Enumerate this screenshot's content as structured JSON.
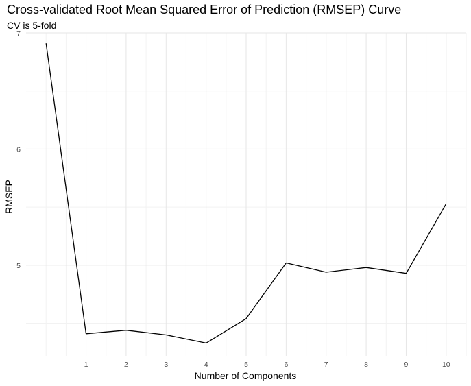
{
  "chart_data": {
    "type": "line",
    "title": "Cross-validated Root Mean Squared Error of Prediction (RMSEP) Curve",
    "subtitle": "CV is 5-fold",
    "xlabel": "Number of Components",
    "ylabel": "RMSEP",
    "x_ticks": [
      1,
      2,
      3,
      4,
      5,
      6,
      7,
      8,
      9,
      10
    ],
    "y_ticks": [
      5,
      6,
      7
    ],
    "xlim": [
      -0.5,
      10.5
    ],
    "ylim": [
      4.22,
      7.0
    ],
    "grid": true,
    "legend": "none",
    "line_color": "#000000",
    "series": [
      {
        "x": [
          0,
          1,
          2,
          3,
          4,
          5,
          6,
          7,
          8,
          9,
          10
        ],
        "values": [
          6.91,
          4.41,
          4.44,
          4.4,
          4.33,
          4.54,
          5.02,
          4.94,
          4.98,
          4.93,
          5.53
        ]
      }
    ]
  }
}
